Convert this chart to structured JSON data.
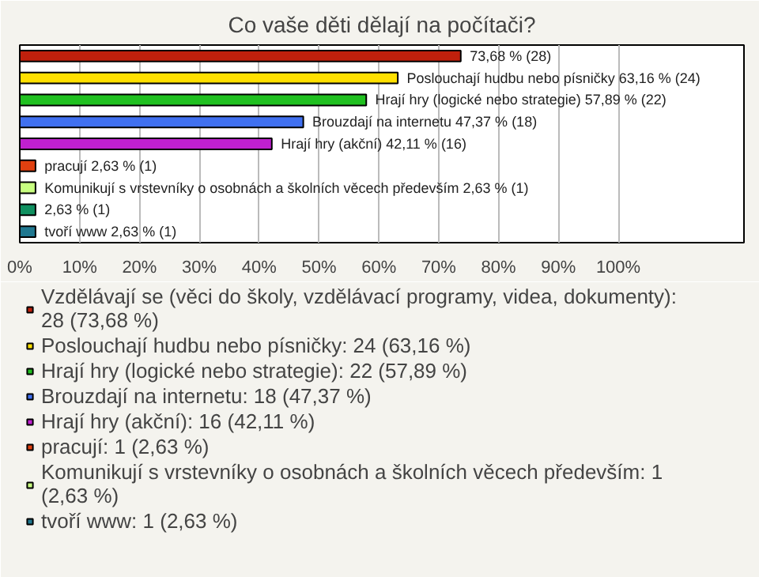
{
  "chart_data": {
    "type": "bar",
    "orientation": "horizontal",
    "title": "Co vaše děti dělají na počítači?",
    "categories": [
      null,
      null,
      null,
      null,
      null,
      null,
      null,
      null,
      null
    ],
    "series": [
      {
        "name": "Vzdělávají se (věci do školy, vzdělávací programy, videa, dokumenty): 28 (73,68 %)",
        "color": "#c0200c",
        "values": [
          73.68,
          null,
          null,
          null,
          null,
          null,
          null,
          null,
          null
        ],
        "value_labels": [
          "73,68 % (28)",
          null,
          null,
          null,
          null,
          null,
          null,
          null,
          null
        ]
      },
      {
        "name": "Poslouchají hudbu nebo písničky: 24 (63,16 %)",
        "color": "#ffe000",
        "values": [
          null,
          63.16,
          null,
          null,
          null,
          null,
          null,
          null,
          null
        ],
        "value_labels": [
          null,
          "Poslouchají hudbu nebo písničky 63,16 % (24)",
          null,
          null,
          null,
          null,
          null,
          null,
          null
        ]
      },
      {
        "name": "Hrají hry (logické nebo strategie): 22 (57,89 %)",
        "color": "#20c020",
        "values": [
          null,
          null,
          57.89,
          null,
          null,
          null,
          null,
          null,
          null
        ],
        "value_labels": [
          null,
          null,
          "Hrají hry (logické nebo strategie) 57,89 % (22)",
          null,
          null,
          null,
          null,
          null,
          null
        ]
      },
      {
        "name": "Brouzdají na internetu: 18 (47,37 %)",
        "color": "#4070f0",
        "values": [
          null,
          null,
          null,
          47.37,
          null,
          null,
          null,
          null,
          null
        ],
        "value_labels": [
          null,
          null,
          null,
          "Brouzdají na internetu 47,37 % (18)",
          null,
          null,
          null,
          null,
          null
        ]
      },
      {
        "name": "Hrají hry (akční): 16 (42,11 %)",
        "color": "#c020d0",
        "values": [
          null,
          null,
          null,
          null,
          42.11,
          null,
          null,
          null,
          null
        ],
        "value_labels": [
          null,
          null,
          null,
          null,
          "Hrají hry (akční) 42,11 % (16)",
          null,
          null,
          null,
          null
        ]
      },
      {
        "name": "pracují: 1 (2,63 %)",
        "color": "#e04010",
        "values": [
          null,
          null,
          null,
          null,
          null,
          2.63,
          null,
          null,
          null
        ],
        "value_labels": [
          null,
          null,
          null,
          null,
          null,
          "pracují 2,63 % (1)",
          null,
          null,
          null
        ]
      },
      {
        "name": "Komunikují s vrstevníky o osobnách a školních věcech především: 1 (2,63 %)",
        "color": "#c8ff80",
        "values": [
          null,
          null,
          null,
          null,
          null,
          null,
          2.63,
          null,
          null
        ],
        "value_labels": [
          null,
          null,
          null,
          null,
          null,
          null,
          "Komunikují s vrstevníky o osobnách a školních věcech především 2,63 % (1)",
          null,
          null
        ]
      },
      {
        "color": "#109060",
        "values": [
          null,
          null,
          null,
          null,
          null,
          null,
          null,
          2.63,
          null
        ],
        "value_labels": [
          null,
          null,
          null,
          null,
          null,
          null,
          null,
          "2,63 % (1)",
          null
        ]
      },
      {
        "name": "tvoří www: 1 (2,63 %)",
        "color": "#207890",
        "values": [
          null,
          null,
          null,
          null,
          null,
          null,
          null,
          null,
          2.63
        ],
        "value_labels": [
          null,
          null,
          null,
          null,
          null,
          null,
          null,
          null,
          "tvoří www 2,63 % (1)"
        ]
      }
    ],
    "xlim": [
      0,
      121
    ],
    "xticks": [
      {
        "value": 0,
        "label": "0%"
      },
      {
        "value": 10,
        "label": "10%"
      },
      {
        "value": 20,
        "label": "20%"
      },
      {
        "value": 30,
        "label": "30%"
      },
      {
        "value": 40,
        "label": "40%"
      },
      {
        "value": 50,
        "label": "50%"
      },
      {
        "value": 60,
        "label": "60%"
      },
      {
        "value": 70,
        "label": "70%"
      },
      {
        "value": 80,
        "label": "80%"
      },
      {
        "value": 90,
        "label": "90%"
      },
      {
        "value": 100,
        "label": "100%"
      }
    ],
    "grid": "x",
    "tick_labels": "x",
    "legend": "bottom"
  }
}
